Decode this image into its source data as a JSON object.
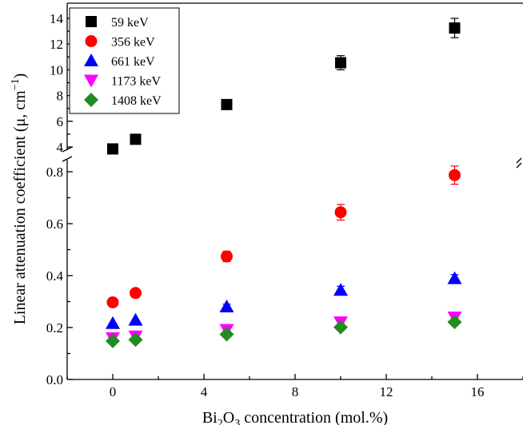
{
  "chart_data": {
    "type": "scatter",
    "xlabel": {
      "main": "Bi",
      "sub1": "2",
      "mid": "O",
      "sub2": "3",
      "tail": " concentration (mol.%)"
    },
    "ylabel": {
      "pre": "Linear attenuation coefficient (μ, cm",
      "sup": "−1",
      "post": ")"
    },
    "broken_y_axis": true,
    "x_range": [
      -2,
      18
    ],
    "x_ticks": [
      0,
      4,
      8,
      12,
      16
    ],
    "x_tick_labels": [
      "0",
      "4",
      "8",
      "12",
      "16"
    ],
    "y_lower_range": [
      0,
      0.84
    ],
    "y_lower_ticks": [
      0.0,
      0.2,
      0.4,
      0.6,
      0.8
    ],
    "y_lower_tick_labels": [
      "0.0",
      "0.2",
      "0.4",
      "0.6",
      "0.8"
    ],
    "y_upper_range": [
      3.6,
      15
    ],
    "y_upper_ticks": [
      4,
      6,
      8,
      10,
      12,
      14
    ],
    "y_upper_tick_labels": [
      "4",
      "6",
      "8",
      "10",
      "12",
      "14"
    ],
    "legend_position": "top-left",
    "series": [
      {
        "name": "59 keV",
        "marker": "square",
        "color": "#000000",
        "x": [
          0,
          1,
          5,
          10,
          15
        ],
        "y": [
          3.85,
          4.6,
          7.3,
          10.55,
          13.25
        ],
        "err": [
          0.1,
          0.1,
          0.35,
          0.55,
          0.75
        ]
      },
      {
        "name": "356 keV",
        "marker": "circle",
        "color": "#ff0000",
        "x": [
          0,
          1,
          5,
          10,
          15
        ],
        "y": [
          0.297,
          0.333,
          0.474,
          0.644,
          0.787
        ],
        "err": [
          0.0,
          0.0,
          0.02,
          0.03,
          0.035
        ]
      },
      {
        "name": "661 keV",
        "marker": "triangle-up",
        "color": "#0000ff",
        "x": [
          0,
          1,
          5,
          10,
          15
        ],
        "y": [
          0.216,
          0.229,
          0.28,
          0.344,
          0.389
        ],
        "err": [
          0.0,
          0.0,
          0.01,
          0.015,
          0.015
        ]
      },
      {
        "name": "1173 keV",
        "marker": "triangle-down",
        "color": "#ff00ff",
        "x": [
          0,
          1,
          5,
          10,
          15
        ],
        "y": [
          0.16,
          0.167,
          0.192,
          0.221,
          0.24
        ],
        "err": [
          0.0,
          0.0,
          0.0,
          0.0,
          0.0
        ]
      },
      {
        "name": "1408 keV",
        "marker": "diamond",
        "color": "#228b22",
        "x": [
          0,
          1,
          5,
          10,
          15
        ],
        "y": [
          0.148,
          0.153,
          0.174,
          0.201,
          0.221
        ],
        "err": [
          0.0,
          0.0,
          0.0,
          0.0,
          0.0
        ]
      }
    ]
  }
}
